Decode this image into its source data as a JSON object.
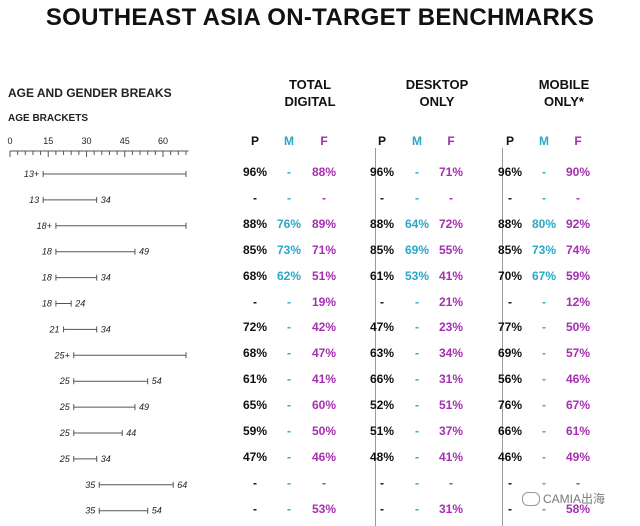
{
  "title": "SOUTHEAST ASIA ON-TARGET BENCHMARKS",
  "section_label": "AGE AND GENDER BREAKS",
  "sub_label": "AGE BRACKETS",
  "colors": {
    "P": "#111111",
    "M": "#29a8c8",
    "F": "#a52fb0",
    "axis": "#555555",
    "divider": "#9a9a9a"
  },
  "groups": [
    {
      "label_line1": "TOTAL",
      "label_line2": "DIGITAL",
      "columns": [
        "P",
        "M",
        "F"
      ]
    },
    {
      "label_line1": "DESKTOP",
      "label_line2": "ONLY",
      "columns": [
        "P",
        "M",
        "F"
      ]
    },
    {
      "label_line1": "MOBILE",
      "label_line2": "ONLY*",
      "columns": [
        "P",
        "M",
        "F"
      ]
    }
  ],
  "watermark": "CAMIA出海",
  "chart_data": {
    "type": "table",
    "age_axis": {
      "ticks": [
        0,
        15,
        30,
        45,
        60
      ],
      "min": 0,
      "max": 70
    },
    "rows": [
      {
        "bracket": {
          "start": 13,
          "end": null,
          "start_label": "13+",
          "end_label": ""
        },
        "total": [
          "96%",
          "-",
          "88%"
        ],
        "desktop": [
          "96%",
          "-",
          "71%"
        ],
        "mobile": [
          "96%",
          "-",
          "90%"
        ]
      },
      {
        "bracket": {
          "start": 13,
          "end": 34,
          "start_label": "13",
          "end_label": "34"
        },
        "total": [
          "-",
          "-",
          "-"
        ],
        "desktop": [
          "-",
          "-",
          "-"
        ],
        "mobile": [
          "-",
          "-",
          "-"
        ]
      },
      {
        "bracket": {
          "start": 18,
          "end": null,
          "start_label": "18+",
          "end_label": ""
        },
        "total": [
          "88%",
          "76%",
          "89%"
        ],
        "desktop": [
          "88%",
          "64%",
          "72%"
        ],
        "mobile": [
          "88%",
          "80%",
          "92%"
        ]
      },
      {
        "bracket": {
          "start": 18,
          "end": 49,
          "start_label": "18",
          "end_label": "49"
        },
        "total": [
          "85%",
          "73%",
          "71%"
        ],
        "desktop": [
          "85%",
          "69%",
          "55%"
        ],
        "mobile": [
          "85%",
          "73%",
          "74%"
        ]
      },
      {
        "bracket": {
          "start": 18,
          "end": 34,
          "start_label": "18",
          "end_label": "34"
        },
        "total": [
          "68%",
          "62%",
          "51%"
        ],
        "desktop": [
          "61%",
          "53%",
          "41%"
        ],
        "mobile": [
          "70%",
          "67%",
          "59%"
        ]
      },
      {
        "bracket": {
          "start": 18,
          "end": 24,
          "start_label": "18",
          "end_label": "24"
        },
        "total": [
          "-",
          "-",
          "19%"
        ],
        "desktop": [
          "-",
          "-",
          "21%"
        ],
        "mobile": [
          "-",
          "-",
          "12%"
        ]
      },
      {
        "bracket": {
          "start": 21,
          "end": 34,
          "start_label": "21",
          "end_label": "34"
        },
        "total": [
          "72%",
          "-",
          "42%"
        ],
        "desktop": [
          "47%",
          "-",
          "23%"
        ],
        "mobile": [
          "77%",
          "-",
          "50%"
        ]
      },
      {
        "bracket": {
          "start": 25,
          "end": null,
          "start_label": "25+",
          "end_label": ""
        },
        "total": [
          "68%",
          "-",
          "47%"
        ],
        "desktop": [
          "63%",
          "-",
          "34%"
        ],
        "mobile": [
          "69%",
          "-",
          "57%"
        ]
      },
      {
        "bracket": {
          "start": 25,
          "end": 54,
          "start_label": "25",
          "end_label": "54"
        },
        "total": [
          "61%",
          "-",
          "41%"
        ],
        "desktop": [
          "66%",
          "-",
          "31%"
        ],
        "mobile": [
          "56%",
          "-",
          "46%"
        ]
      },
      {
        "bracket": {
          "start": 25,
          "end": 49,
          "start_label": "25",
          "end_label": "49"
        },
        "total": [
          "65%",
          "-",
          "60%"
        ],
        "desktop": [
          "52%",
          "-",
          "51%"
        ],
        "mobile": [
          "76%",
          "-",
          "67%"
        ]
      },
      {
        "bracket": {
          "start": 25,
          "end": 44,
          "start_label": "25",
          "end_label": "44"
        },
        "total": [
          "59%",
          "-",
          "50%"
        ],
        "desktop": [
          "51%",
          "-",
          "37%"
        ],
        "mobile": [
          "66%",
          "-",
          "61%"
        ]
      },
      {
        "bracket": {
          "start": 25,
          "end": 34,
          "start_label": "25",
          "end_label": "34"
        },
        "total": [
          "47%",
          "-",
          "46%"
        ],
        "desktop": [
          "48%",
          "-",
          "41%"
        ],
        "mobile": [
          "46%",
          "-",
          "49%"
        ]
      },
      {
        "bracket": {
          "start": 35,
          "end": 64,
          "start_label": "35",
          "end_label": "64"
        },
        "total": [
          "-",
          "-",
          "-"
        ],
        "desktop": [
          "-",
          "-",
          "-"
        ],
        "mobile": [
          "-",
          "-",
          "-"
        ]
      },
      {
        "bracket": {
          "start": 35,
          "end": 54,
          "start_label": "35",
          "end_label": "54"
        },
        "total": [
          "-",
          "-",
          "53%"
        ],
        "desktop": [
          "-",
          "-",
          "31%"
        ],
        "mobile": [
          "-",
          "-",
          "58%"
        ]
      }
    ]
  }
}
